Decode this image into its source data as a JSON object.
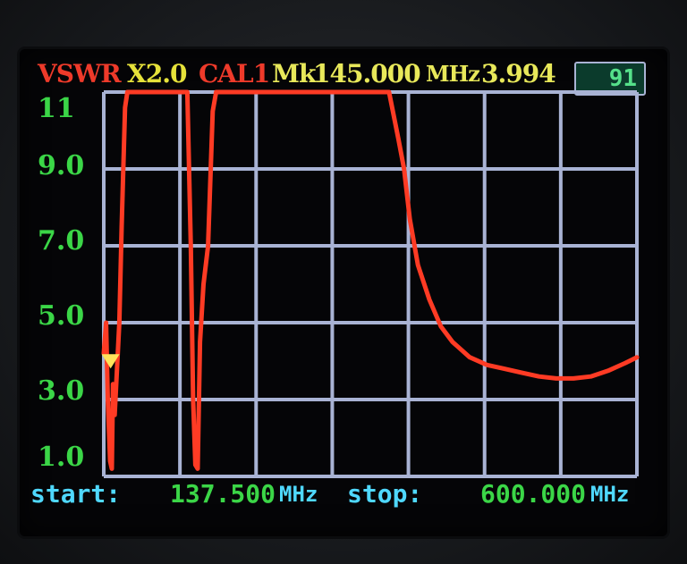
{
  "header": {
    "mode": "VSWR",
    "scale": "X2.0",
    "cal": "CAL1",
    "marker_label": "Mk",
    "marker_freq": "145.000",
    "marker_unit": "MHz",
    "marker_value": "3.994",
    "counter": "91"
  },
  "footer": {
    "start_label": "start:",
    "start_value": "137.500",
    "start_unit": "MHz",
    "stop_label": "stop:",
    "stop_value": "600.000",
    "stop_unit": "MHz"
  },
  "colors": {
    "mode": "#ee3a2a",
    "scale": "#e6e23a",
    "cal": "#ee3a2a",
    "marker": "#e8e85a",
    "ytick": "#3bd647",
    "footer_label": "#4fd8ff",
    "footer_value": "#3bd647",
    "grid": "#a9b3d4",
    "trace": "#ff3b24",
    "marker_triangle": "#ffe35a"
  },
  "chart_data": {
    "type": "line",
    "title": "",
    "xlabel": "",
    "ylabel": "",
    "ylim": [
      1,
      11
    ],
    "xlim": [
      137.5,
      600
    ],
    "y_ticks": [
      "11",
      "9.0",
      "7.0",
      "5.0",
      "3.0",
      "1.0"
    ],
    "grid": true,
    "marker": {
      "x": 145,
      "y": 3.994
    },
    "series": [
      {
        "values": [
          [
            137.5,
            4.2
          ],
          [
            139.5,
            5.0
          ],
          [
            141,
            3.0
          ],
          [
            143,
            1.4
          ],
          [
            144.5,
            1.2
          ],
          [
            145.5,
            3.4
          ],
          [
            147,
            2.6
          ],
          [
            149,
            3.8
          ],
          [
            151,
            5.0
          ],
          [
            153,
            7.5
          ],
          [
            156,
            10.6
          ],
          [
            158,
            11
          ],
          [
            210,
            11
          ],
          [
            213,
            7.0
          ],
          [
            215,
            3.0
          ],
          [
            217,
            1.3
          ],
          [
            219,
            1.2
          ],
          [
            221,
            4.5
          ],
          [
            224,
            6.0
          ],
          [
            228,
            7.0
          ],
          [
            232,
            10.5
          ],
          [
            235,
            11
          ],
          [
            385,
            11
          ],
          [
            393,
            9.8
          ],
          [
            398,
            9.0
          ],
          [
            403,
            7.7
          ],
          [
            410,
            6.5
          ],
          [
            420,
            5.6
          ],
          [
            430,
            4.9
          ],
          [
            440,
            4.5
          ],
          [
            455,
            4.1
          ],
          [
            470,
            3.9
          ],
          [
            485,
            3.8
          ],
          [
            500,
            3.7
          ],
          [
            515,
            3.6
          ],
          [
            530,
            3.55
          ],
          [
            545,
            3.55
          ],
          [
            560,
            3.6
          ],
          [
            575,
            3.75
          ],
          [
            590,
            3.95
          ],
          [
            600,
            4.1
          ]
        ]
      }
    ]
  }
}
